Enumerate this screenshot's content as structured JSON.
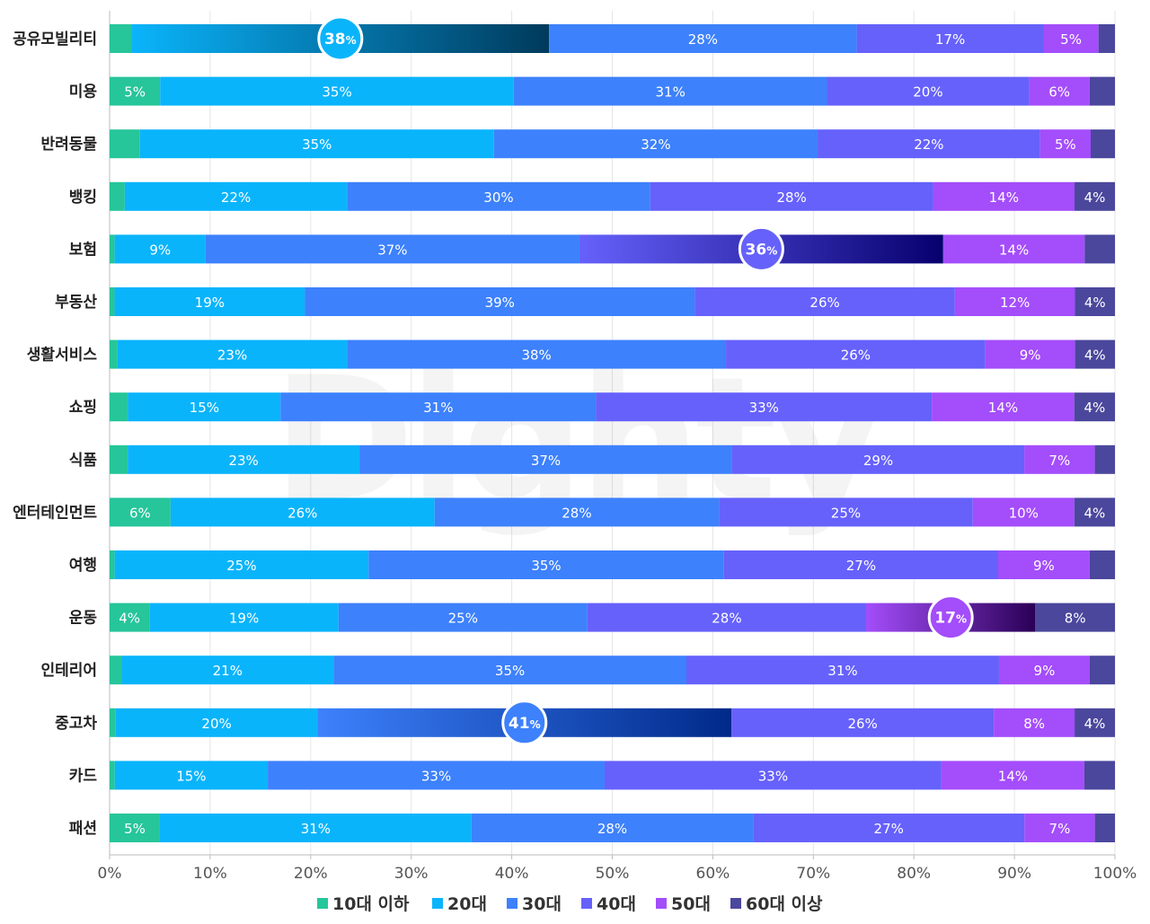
{
  "chart_data": {
    "type": "bar",
    "orientation": "horizontal",
    "stacked": true,
    "percent": true,
    "categories": [
      "공유모빌리티",
      "미용",
      "반려동물",
      "뱅킹",
      "보험",
      "부동산",
      "생활서비스",
      "쇼핑",
      "식품",
      "엔터테인먼트",
      "여행",
      "운동",
      "인테리어",
      "중고차",
      "카드",
      "패션"
    ],
    "series": [
      {
        "name": "10대 이하",
        "color": "#26c59a",
        "values": [
          2,
          5,
          3,
          1.5,
          0.5,
          0.5,
          0.8,
          1.8,
          1.8,
          6,
          0.5,
          4,
          1.2,
          0.6,
          0.5,
          5
        ]
      },
      {
        "name": "20대",
        "color": "#0ab4fb",
        "values": [
          38,
          35,
          35,
          22,
          9,
          19,
          23,
          15,
          23,
          26,
          25,
          19,
          21,
          20,
          15,
          31
        ]
      },
      {
        "name": "30대",
        "color": "#3d81fc",
        "values": [
          28,
          31,
          32,
          30,
          37,
          39,
          38,
          31,
          37,
          28,
          35,
          25,
          35,
          41,
          33,
          28
        ]
      },
      {
        "name": "40대",
        "color": "#6661fb",
        "values": [
          17,
          20,
          22,
          28,
          36,
          26,
          26,
          33,
          29,
          25,
          27,
          28,
          31,
          26,
          33,
          27
        ]
      },
      {
        "name": "50대",
        "color": "#a44dfb",
        "values": [
          5,
          6,
          5,
          14,
          14,
          12,
          9,
          14,
          7,
          10,
          9,
          17,
          9,
          8,
          14,
          7
        ]
      },
      {
        "name": "60대 이상",
        "color": "#4b479c",
        "values": [
          1.5,
          2.5,
          2.4,
          4,
          3,
          4,
          4,
          4,
          2,
          4,
          2.5,
          8,
          2.5,
          4,
          3,
          2
        ]
      }
    ],
    "highlights": [
      {
        "category": "공유모빌리티",
        "series": "20대",
        "value": "38"
      },
      {
        "category": "보험",
        "series": "40대",
        "value": "36"
      },
      {
        "category": "운동",
        "series": "50대",
        "value": "17"
      },
      {
        "category": "중고차",
        "series": "30대",
        "value": "41"
      }
    ],
    "hidden_label_below": 4,
    "xlim": [
      0,
      100
    ],
    "xticks": [
      "0%",
      "10%",
      "20%",
      "30%",
      "40%",
      "50%",
      "60%",
      "70%",
      "80%",
      "90%",
      "100%"
    ],
    "percent_unit": "%",
    "grid": true,
    "legend_position": "bottom",
    "watermark": "Dighty"
  }
}
